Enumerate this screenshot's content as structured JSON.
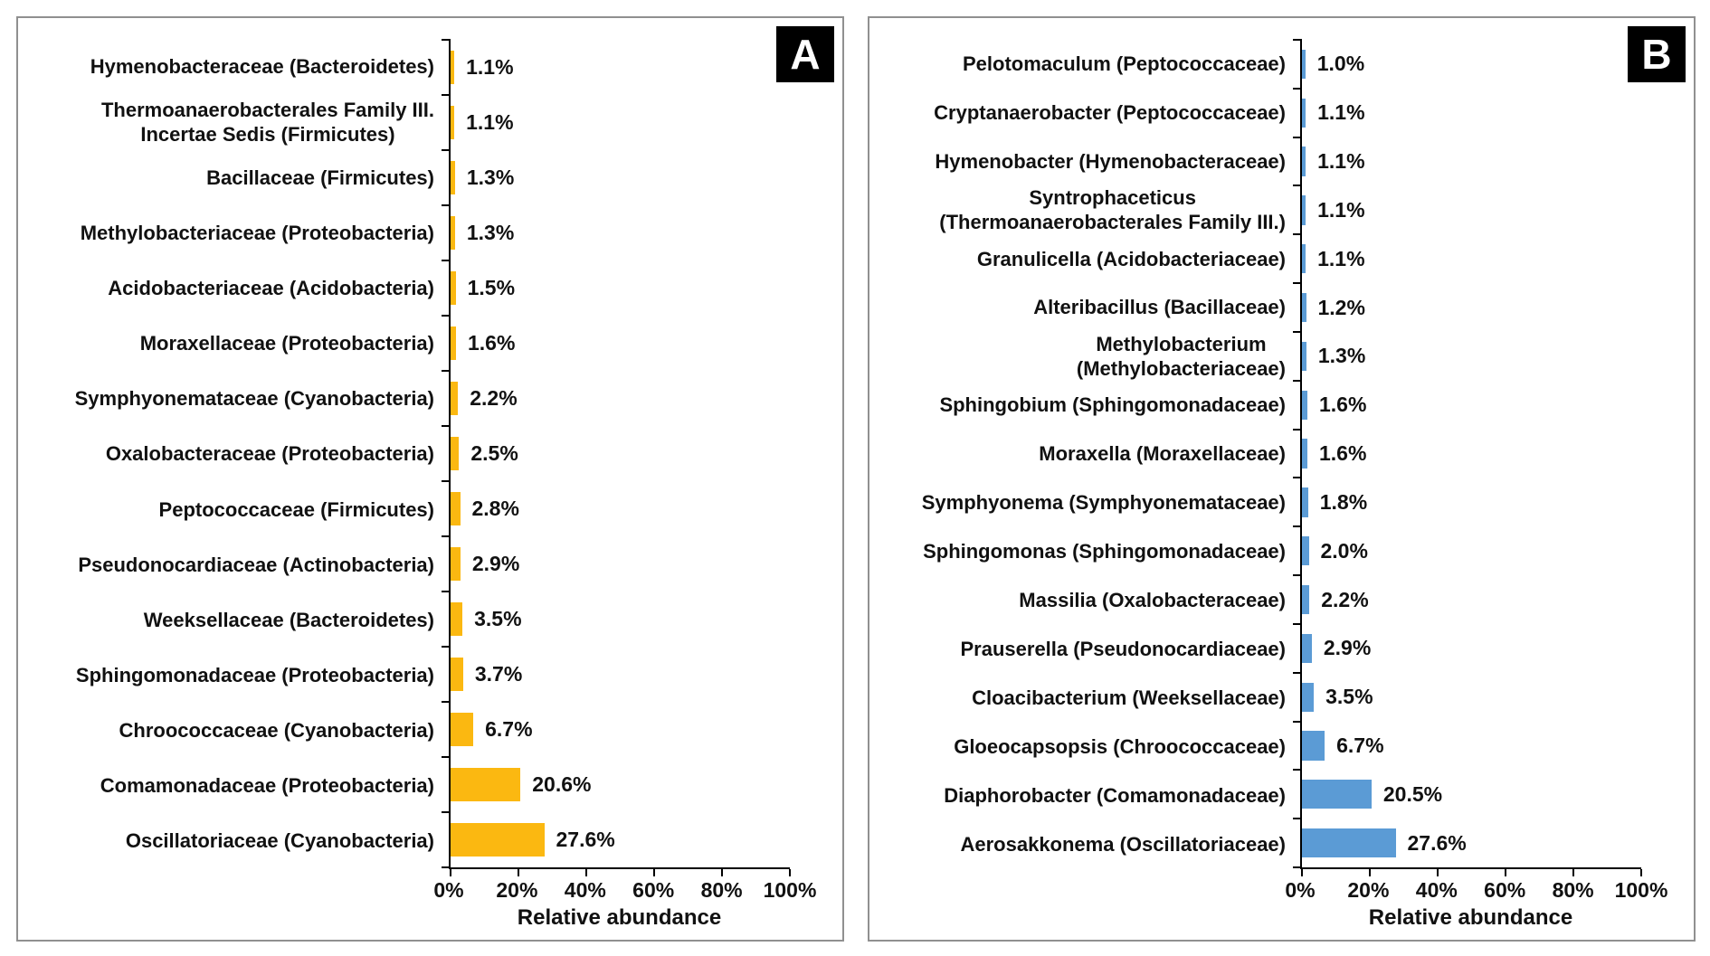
{
  "chart_data": [
    {
      "panel_label": "A",
      "type": "bar",
      "orientation": "horizontal",
      "bar_color": "#FBB811",
      "xlabel": "Relative abundance",
      "xlim": [
        0,
        100
      ],
      "x_tick_labels": [
        "0%",
        "20%",
        "40%",
        "60%",
        "80%",
        "100%"
      ],
      "categories": [
        "Hymenobacteraceae (Bacteroidetes)",
        "Thermoanaerobacterales Family III.\nIncertae Sedis (Firmicutes)",
        "Bacillaceae (Firmicutes)",
        "Methylobacteriaceae (Proteobacteria)",
        "Acidobacteriaceae (Acidobacteria)",
        "Moraxellaceae (Proteobacteria)",
        "Symphyonemataceae (Cyanobacteria)",
        "Oxalobacteraceae (Proteobacteria)",
        "Peptococcaceae (Firmicutes)",
        "Pseudonocardiaceae (Actinobacteria)",
        "Weeksellaceae (Bacteroidetes)",
        "Sphingomonadaceae (Proteobacteria)",
        "Chroococcaceae (Cyanobacteria)",
        "Comamonadaceae (Proteobacteria)",
        "Oscillatoriaceae (Cyanobacteria)"
      ],
      "values": [
        1.1,
        1.1,
        1.3,
        1.3,
        1.5,
        1.6,
        2.2,
        2.5,
        2.8,
        2.9,
        3.5,
        3.7,
        6.7,
        20.6,
        27.6
      ],
      "value_labels": [
        "1.1%",
        "1.1%",
        "1.3%",
        "1.3%",
        "1.5%",
        "1.6%",
        "2.2%",
        "2.5%",
        "2.8%",
        "2.9%",
        "3.5%",
        "3.7%",
        "6.7%",
        "20.6%",
        "27.6%"
      ]
    },
    {
      "panel_label": "B",
      "type": "bar",
      "orientation": "horizontal",
      "bar_color": "#5B9BD5",
      "xlabel": "Relative abundance",
      "xlim": [
        0,
        100
      ],
      "x_tick_labels": [
        "0%",
        "20%",
        "40%",
        "60%",
        "80%",
        "100%"
      ],
      "categories": [
        "Pelotomaculum (Peptococcaceae)",
        "Cryptanaerobacter (Peptococcaceae)",
        "Hymenobacter (Hymenobacteraceae)",
        "Syntrophaceticus\n(Thermoanaerobacterales Family III.)",
        "Granulicella (Acidobacteriaceae)",
        "Alteribacillus (Bacillaceae)",
        "Methylobacterium\n(Methylobacteriaceae)",
        "Sphingobium (Sphingomonadaceae)",
        "Moraxella (Moraxellaceae)",
        "Symphyonema (Symphyonemataceae)",
        "Sphingomonas (Sphingomonadaceae)",
        "Massilia (Oxalobacteraceae)",
        "Prauserella (Pseudonocardiaceae)",
        "Cloacibacterium (Weeksellaceae)",
        "Gloeocapsopsis (Chroococcaceae)",
        "Diaphorobacter (Comamonadaceae)",
        "Aerosakkonema (Oscillatoriaceae)"
      ],
      "values": [
        1.0,
        1.1,
        1.1,
        1.1,
        1.1,
        1.2,
        1.3,
        1.6,
        1.6,
        1.8,
        2.0,
        2.2,
        2.9,
        3.5,
        6.7,
        20.5,
        27.6
      ],
      "value_labels": [
        "1.0%",
        "1.1%",
        "1.1%",
        "1.1%",
        "1.1%",
        "1.2%",
        "1.3%",
        "1.6%",
        "1.6%",
        "1.8%",
        "2.0%",
        "2.2%",
        "2.9%",
        "3.5%",
        "6.7%",
        "20.5%",
        "27.6%"
      ]
    }
  ]
}
